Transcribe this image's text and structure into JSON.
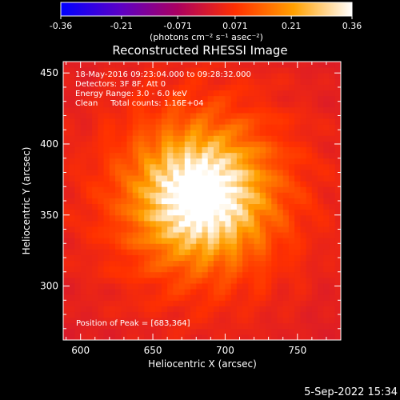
{
  "chart_data": {
    "type": "heatmap",
    "title": "Reconstructed RHESSI Image",
    "colorbar": {
      "ticks": [
        "-0.36",
        "-0.21",
        "-0.071",
        "0.071",
        "0.21",
        "0.36"
      ],
      "range": [
        -0.36,
        0.36
      ],
      "unit_label": "(photons cm⁻² s⁻¹ asec⁻²)",
      "colors": [
        "#0000ff",
        "#5a00c8",
        "#aa0060",
        "#ff3000",
        "#ffa000",
        "#ffffff"
      ]
    },
    "xlabel": "Heliocentric X (arcsec)",
    "ylabel": "Heliocentric Y (arcsec)",
    "xlim": [
      588,
      780
    ],
    "ylim": [
      262,
      458
    ],
    "xticks": [
      600,
      650,
      700,
      750
    ],
    "yticks": [
      300,
      350,
      400,
      450
    ],
    "source": {
      "x": 683,
      "y": 364,
      "sigma": 28,
      "peak": 0.36
    },
    "background": 0.02,
    "annotations": [
      "18-May-2016 09:23:04.000 to 09:28:32.000",
      "Detectors: 3F 8F, Att 0",
      "Energy Range: 3.0 - 6.0 keV",
      "Clean     Total counts: 1.16E+04"
    ],
    "peak_label": "Position of Peak = [683,364]"
  },
  "footer": {
    "timestamp": "5-Sep-2022 15:34"
  }
}
